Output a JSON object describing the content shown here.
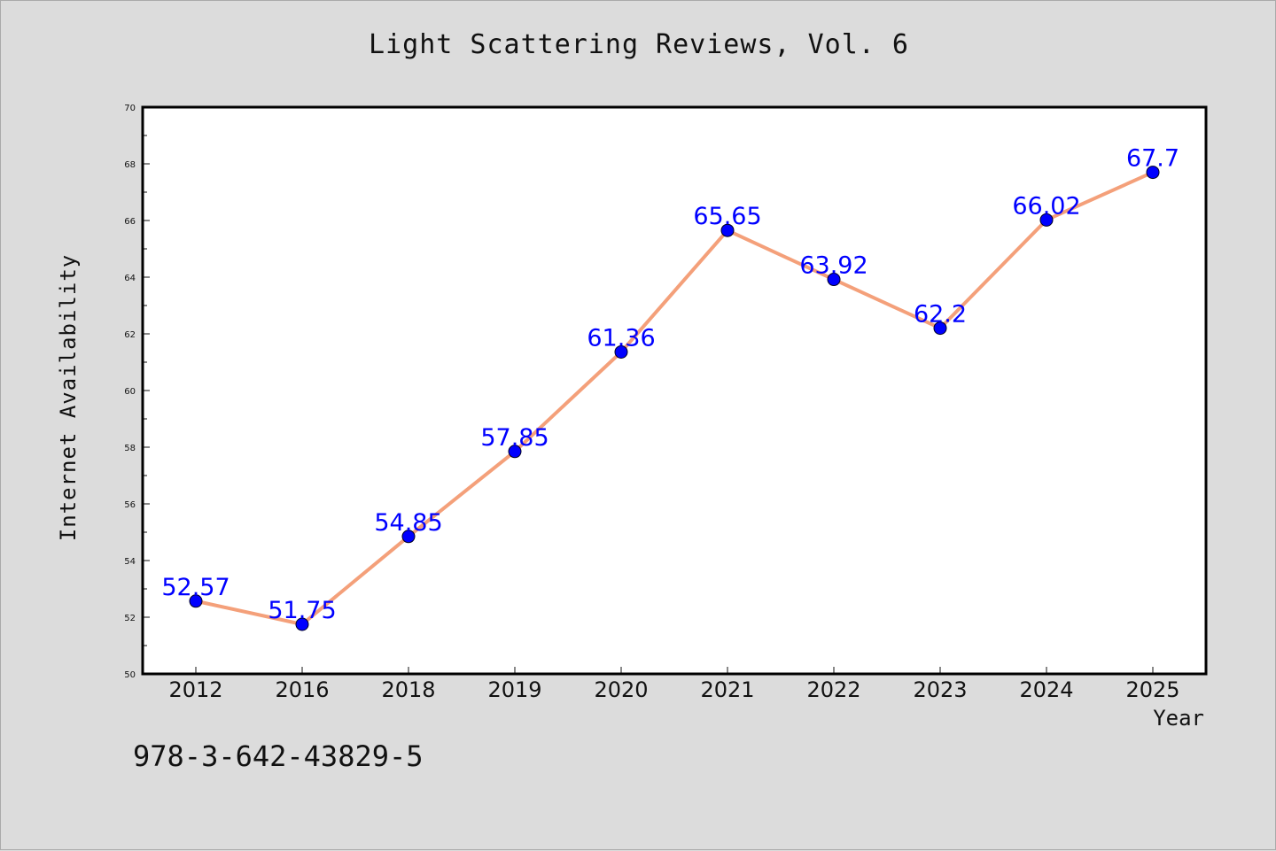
{
  "figure": {
    "title": "Light Scattering Reviews, Vol. 6",
    "footer_text": "978-3-642-43829-5"
  },
  "chart_data": {
    "type": "line",
    "title": "Light Scattering Reviews, Vol. 6",
    "xlabel": "Year",
    "ylabel": "Internet Availability",
    "categories": [
      "2012",
      "2016",
      "2018",
      "2019",
      "2020",
      "2021",
      "2022",
      "2023",
      "2024",
      "2025"
    ],
    "series": [
      {
        "values": [
          52.57,
          51.75,
          54.85,
          57.85,
          61.36,
          65.65,
          63.92,
          62.2,
          66.02,
          67.7
        ],
        "data_labels": [
          "52.57",
          "51.75",
          "54.85",
          "57.85",
          "61.36",
          "65.65",
          "63.92",
          "62.2",
          "66.02",
          "67.7"
        ],
        "line_color": "#f4a07a",
        "marker_color": "#0000ff"
      }
    ],
    "ylim": [
      50,
      70
    ],
    "yticks": [
      50,
      52,
      54,
      56,
      58,
      60,
      62,
      64,
      66,
      68,
      70
    ],
    "grid": false,
    "legend": false,
    "plot_background": "#ffffff",
    "figure_background": "#dcdcdc"
  }
}
